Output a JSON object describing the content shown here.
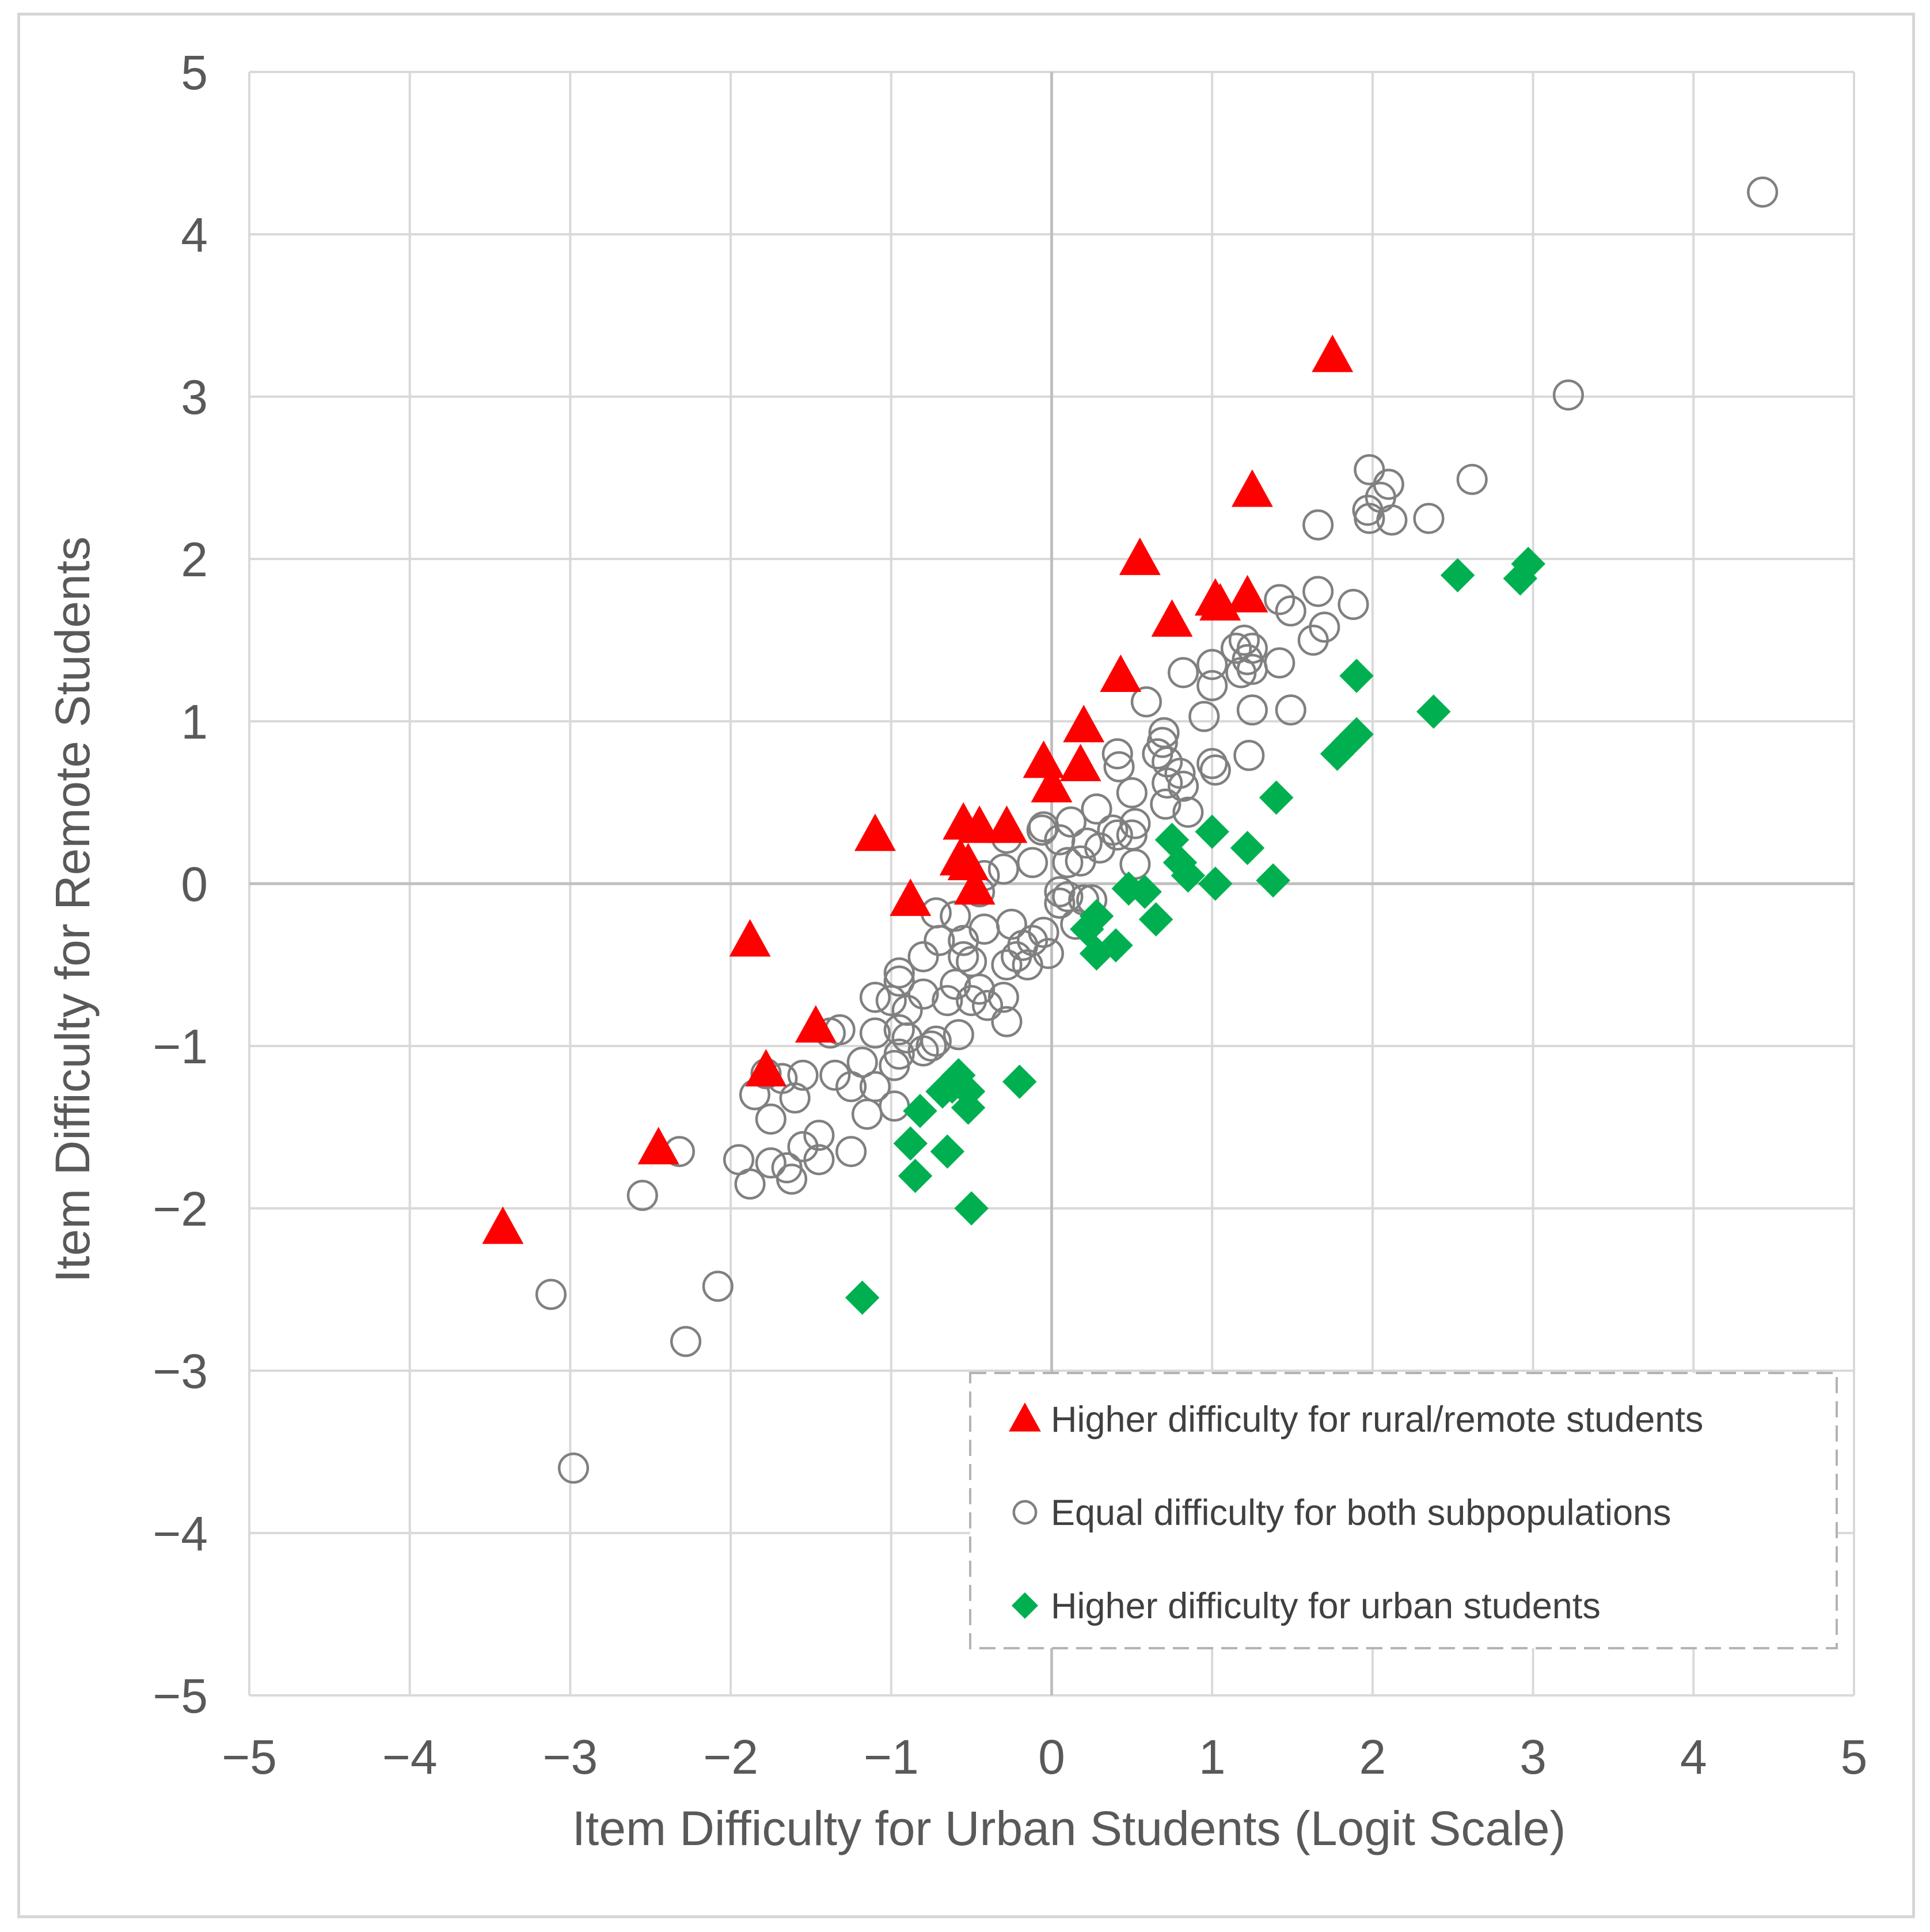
{
  "chart_data": {
    "type": "scatter",
    "title": "",
    "xlabel": "Item Difficulty for Urban Students (Logit Scale)",
    "ylabel": "Item Difficulty for Remote Students",
    "xlim": [
      -5,
      5
    ],
    "ylim": [
      -5,
      5
    ],
    "x_ticks": [
      -5,
      -4,
      -3,
      -2,
      -1,
      0,
      1,
      2,
      3,
      4,
      5
    ],
    "y_ticks": [
      -5,
      -4,
      -3,
      -2,
      -1,
      0,
      1,
      2,
      3,
      4,
      5
    ],
    "x_tick_labels": [
      "−5",
      "−4",
      "−3",
      "−2",
      "−1",
      "0",
      "1",
      "2",
      "3",
      "4",
      "5"
    ],
    "y_tick_labels": [
      "−5",
      "−4",
      "−3",
      "−2",
      "−1",
      "0",
      "1",
      "2",
      "3",
      "4",
      "5"
    ],
    "grid": true,
    "legend_position": "bottom-right",
    "series": [
      {
        "name": "Higher difficulty for rural/remote students",
        "marker": "triangle",
        "color": "#ff0000",
        "points": [
          [
            1.75,
            3.25
          ],
          [
            1.25,
            2.42
          ],
          [
            0.55,
            2.0
          ],
          [
            0.75,
            1.62
          ],
          [
            1.02,
            1.75
          ],
          [
            1.05,
            1.72
          ],
          [
            1.22,
            1.77
          ],
          [
            0.43,
            1.28
          ],
          [
            0.2,
            0.97
          ],
          [
            -0.05,
            0.75
          ],
          [
            0.0,
            0.6
          ],
          [
            0.18,
            0.73
          ],
          [
            -0.55,
            0.37
          ],
          [
            -0.45,
            0.35
          ],
          [
            -0.28,
            0.35
          ],
          [
            -0.52,
            0.12
          ],
          [
            -0.57,
            0.15
          ],
          [
            -0.48,
            -0.03
          ],
          [
            -1.1,
            0.3
          ],
          [
            -0.88,
            -0.1
          ],
          [
            -1.88,
            -0.35
          ],
          [
            -1.47,
            -0.88
          ],
          [
            -1.78,
            -1.15
          ],
          [
            -2.45,
            -1.63
          ],
          [
            -3.42,
            -2.12
          ]
        ]
      },
      {
        "name": "Equal difficulty for both subpopulations",
        "marker": "circle",
        "color": "#808080",
        "points": [
          [
            4.43,
            4.26
          ],
          [
            3.22,
            3.01
          ],
          [
            2.62,
            2.49
          ],
          [
            1.98,
            2.55
          ],
          [
            2.1,
            2.46
          ],
          [
            2.05,
            2.38
          ],
          [
            2.35,
            2.25
          ],
          [
            1.97,
            2.3
          ],
          [
            1.98,
            2.25
          ],
          [
            2.12,
            2.24
          ],
          [
            1.66,
            2.21
          ],
          [
            1.42,
            1.75
          ],
          [
            1.49,
            1.68
          ],
          [
            1.66,
            1.8
          ],
          [
            1.88,
            1.72
          ],
          [
            1.7,
            1.58
          ],
          [
            1.63,
            1.5
          ],
          [
            1.15,
            1.45
          ],
          [
            1.2,
            1.5
          ],
          [
            1.25,
            1.45
          ],
          [
            1.22,
            1.38
          ],
          [
            1.42,
            1.36
          ],
          [
            1.25,
            1.32
          ],
          [
            1.18,
            1.3
          ],
          [
            1.0,
            1.35
          ],
          [
            0.82,
            1.3
          ],
          [
            1.0,
            1.22
          ],
          [
            0.59,
            1.12
          ],
          [
            1.25,
            1.07
          ],
          [
            1.49,
            1.07
          ],
          [
            0.95,
            1.03
          ],
          [
            0.7,
            0.93
          ],
          [
            0.69,
            0.87
          ],
          [
            0.66,
            0.8
          ],
          [
            0.41,
            0.8
          ],
          [
            0.42,
            0.72
          ],
          [
            0.72,
            0.75
          ],
          [
            0.8,
            0.68
          ],
          [
            1.0,
            0.74
          ],
          [
            1.23,
            0.79
          ],
          [
            1.02,
            0.7
          ],
          [
            0.82,
            0.6
          ],
          [
            0.72,
            0.62
          ],
          [
            0.5,
            0.56
          ],
          [
            0.71,
            0.49
          ],
          [
            0.85,
            0.44
          ],
          [
            0.28,
            0.46
          ],
          [
            0.52,
            0.37
          ],
          [
            0.38,
            0.33
          ],
          [
            0.41,
            0.3
          ],
          [
            0.5,
            0.3
          ],
          [
            0.52,
            0.12
          ],
          [
            0.3,
            0.22
          ],
          [
            0.22,
            0.25
          ],
          [
            0.12,
            0.38
          ],
          [
            -0.05,
            0.35
          ],
          [
            -0.06,
            0.33
          ],
          [
            0.05,
            0.27
          ],
          [
            0.1,
            0.13
          ],
          [
            0.18,
            0.14
          ],
          [
            -0.12,
            0.13
          ],
          [
            -0.28,
            0.28
          ],
          [
            -0.42,
            0.05
          ],
          [
            -0.45,
            -0.05
          ],
          [
            -0.3,
            0.09
          ],
          [
            0.05,
            -0.05
          ],
          [
            0.1,
            -0.08
          ],
          [
            0.05,
            -0.12
          ],
          [
            0.2,
            -0.1
          ],
          [
            0.25,
            -0.1
          ],
          [
            0.15,
            -0.25
          ],
          [
            -0.25,
            -0.25
          ],
          [
            -0.42,
            -0.28
          ],
          [
            -0.6,
            -0.2
          ],
          [
            -0.72,
            -0.18
          ],
          [
            -0.55,
            -0.35
          ],
          [
            -0.05,
            -0.3
          ],
          [
            -0.12,
            -0.35
          ],
          [
            -0.02,
            -0.43
          ],
          [
            -0.18,
            -0.38
          ],
          [
            -0.22,
            -0.45
          ],
          [
            -0.28,
            -0.5
          ],
          [
            -0.15,
            -0.5
          ],
          [
            -0.5,
            -0.48
          ],
          [
            -0.55,
            -0.45
          ],
          [
            -0.8,
            -0.45
          ],
          [
            -0.7,
            -0.35
          ],
          [
            -0.95,
            -0.55
          ],
          [
            -0.95,
            -0.6
          ],
          [
            -1.1,
            -0.7
          ],
          [
            -1.0,
            -0.72
          ],
          [
            -0.9,
            -0.78
          ],
          [
            -0.8,
            -0.68
          ],
          [
            -0.65,
            -0.72
          ],
          [
            -0.6,
            -0.62
          ],
          [
            -0.45,
            -0.65
          ],
          [
            -0.4,
            -0.75
          ],
          [
            -0.3,
            -0.7
          ],
          [
            -0.28,
            -0.85
          ],
          [
            -0.5,
            -0.72
          ],
          [
            -0.95,
            -0.9
          ],
          [
            -0.9,
            -0.95
          ],
          [
            -1.1,
            -0.92
          ],
          [
            -1.32,
            -0.9
          ],
          [
            -1.38,
            -0.92
          ],
          [
            -0.58,
            -0.93
          ],
          [
            -0.72,
            -0.97
          ],
          [
            -0.8,
            -1.03
          ],
          [
            -0.75,
            -1.0
          ],
          [
            -0.95,
            -1.05
          ],
          [
            -1.18,
            -1.1
          ],
          [
            -0.98,
            -1.12
          ],
          [
            -1.1,
            -1.25
          ],
          [
            -1.25,
            -1.25
          ],
          [
            -1.35,
            -1.18
          ],
          [
            -1.55,
            -1.18
          ],
          [
            -1.68,
            -1.2
          ],
          [
            -1.78,
            -1.17
          ],
          [
            -1.85,
            -1.3
          ],
          [
            -1.6,
            -1.32
          ],
          [
            -1.15,
            -1.42
          ],
          [
            -0.98,
            -1.37
          ],
          [
            -1.75,
            -1.45
          ],
          [
            -1.45,
            -1.55
          ],
          [
            -1.55,
            -1.62
          ],
          [
            -1.25,
            -1.65
          ],
          [
            -1.45,
            -1.7
          ],
          [
            -1.65,
            -1.75
          ],
          [
            -1.75,
            -1.72
          ],
          [
            -1.95,
            -1.7
          ],
          [
            -1.62,
            -1.82
          ],
          [
            -1.88,
            -1.85
          ],
          [
            -2.32,
            -1.65
          ],
          [
            -2.55,
            -1.92
          ],
          [
            -2.08,
            -2.48
          ],
          [
            -3.12,
            -2.53
          ],
          [
            -2.28,
            -2.82
          ],
          [
            -2.98,
            -3.6
          ]
        ]
      },
      {
        "name": "Higher difficulty for urban students",
        "marker": "diamond",
        "color": "#00b050",
        "points": [
          [
            2.97,
            1.97
          ],
          [
            2.92,
            1.88
          ],
          [
            2.53,
            1.9
          ],
          [
            1.9,
            1.28
          ],
          [
            2.38,
            1.06
          ],
          [
            1.9,
            0.92
          ],
          [
            1.85,
            0.87
          ],
          [
            1.78,
            0.8
          ],
          [
            1.4,
            0.53
          ],
          [
            1.0,
            0.32
          ],
          [
            0.75,
            0.27
          ],
          [
            1.22,
            0.22
          ],
          [
            0.8,
            0.13
          ],
          [
            0.85,
            0.05
          ],
          [
            1.02,
            0.0
          ],
          [
            1.38,
            0.02
          ],
          [
            0.48,
            -0.03
          ],
          [
            0.58,
            -0.05
          ],
          [
            0.65,
            -0.22
          ],
          [
            0.28,
            -0.2
          ],
          [
            0.22,
            -0.28
          ],
          [
            0.4,
            -0.38
          ],
          [
            0.28,
            -0.43
          ],
          [
            -0.2,
            -1.22
          ],
          [
            -0.58,
            -1.18
          ],
          [
            -0.62,
            -1.25
          ],
          [
            -0.52,
            -1.28
          ],
          [
            -0.68,
            -1.28
          ],
          [
            -0.52,
            -1.38
          ],
          [
            -0.82,
            -1.4
          ],
          [
            -0.88,
            -1.6
          ],
          [
            -0.65,
            -1.65
          ],
          [
            -0.85,
            -1.8
          ],
          [
            -0.5,
            -2.0
          ],
          [
            -1.18,
            -2.55
          ]
        ]
      }
    ]
  }
}
